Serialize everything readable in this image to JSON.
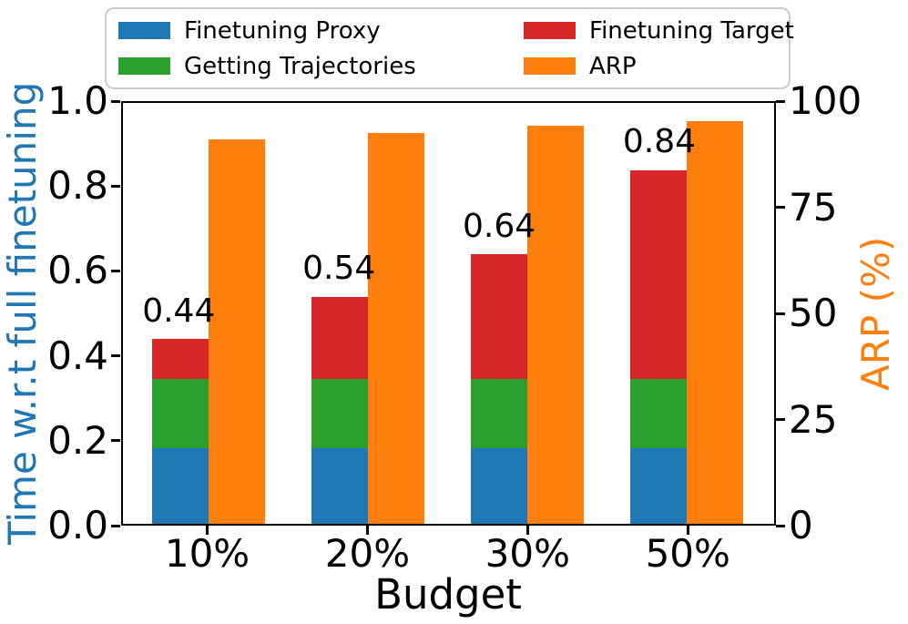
{
  "colors": {
    "proxy_blue": "#1f77b4",
    "trajectories_green": "#2ca02c",
    "target_red": "#d62728",
    "arp_orange": "#ff7f0e",
    "left_axis_title": "#1f77b4",
    "right_axis_title": "#ff7f0e",
    "legend_border": "#cccccc",
    "axis_black": "#000000"
  },
  "legend": {
    "items": [
      {
        "label": "Finetuning Proxy",
        "color": "#1f77b4"
      },
      {
        "label": "Getting Trajectories",
        "color": "#2ca02c"
      },
      {
        "label": "Finetuning Target",
        "color": "#d62728"
      },
      {
        "label": "ARP",
        "color": "#ff7f0e"
      }
    ]
  },
  "chart_data": {
    "type": "bar",
    "categories": [
      "10%",
      "20%",
      "30%",
      "50%"
    ],
    "series": [
      {
        "name": "Finetuning Proxy",
        "axis": "left",
        "stack": "time",
        "color": "#1f77b4",
        "values": [
          0.18,
          0.18,
          0.18,
          0.18
        ]
      },
      {
        "name": "Getting Trajectories",
        "axis": "left",
        "stack": "time",
        "color": "#2ca02c",
        "values": [
          0.165,
          0.165,
          0.165,
          0.165
        ]
      },
      {
        "name": "Finetuning Target",
        "axis": "left",
        "stack": "time",
        "color": "#d62728",
        "values": [
          0.095,
          0.195,
          0.295,
          0.495
        ]
      },
      {
        "name": "ARP",
        "axis": "right",
        "color": "#ff7f0e",
        "values": [
          91.3,
          92.8,
          94.7,
          95.7
        ]
      }
    ],
    "stack_totals": [
      0.44,
      0.54,
      0.64,
      0.84
    ],
    "bar_labels": [
      "0.44",
      "0.54",
      "0.64",
      "0.84"
    ],
    "xlabel": "Budget",
    "ylabel_left": "Time w.r.t full finetuning",
    "ylabel_right": "ARP (%)",
    "left_axis": {
      "min": 0.0,
      "max": 1.0,
      "ticks": [
        "0.0",
        "0.2",
        "0.4",
        "0.6",
        "0.8",
        "1.0"
      ]
    },
    "right_axis": {
      "min": 0,
      "max": 100,
      "ticks": [
        "0",
        "25",
        "50",
        "75",
        "100"
      ]
    },
    "legend_position": "top",
    "grid": false
  }
}
